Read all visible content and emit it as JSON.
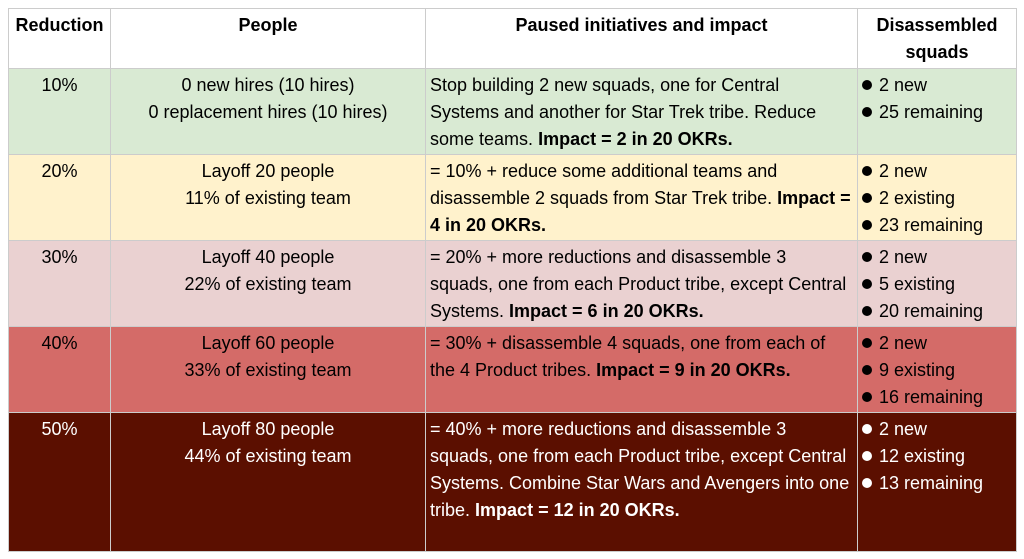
{
  "table": {
    "header": [
      "Reduction",
      "People",
      "Paused initiatives and impact",
      "Disassembled squads"
    ],
    "rows": [
      {
        "reduction": "10%",
        "people": [
          "0 new hires (10 hires)",
          "0 replacement hires (10 hires)"
        ],
        "paused": {
          "text": "Stop building 2 new squads, one for Central Systems and another for Star Trek tribe. Reduce some teams.",
          "impact": "Impact = 2 in 20 OKRs."
        },
        "squads": [
          "2 new",
          "25 remaining"
        ]
      },
      {
        "reduction": "20%",
        "people": [
          "Layoff 20 people",
          "11% of existing team"
        ],
        "paused": {
          "text": "= 10% + reduce some additional teams and disassemble 2 squads from Star Trek tribe.",
          "impact": "Impact = 4 in 20 OKRs."
        },
        "squads": [
          "2 new",
          "2 existing",
          "23 remaining"
        ]
      },
      {
        "reduction": "30%",
        "people": [
          "Layoff 40 people",
          "22% of existing team"
        ],
        "paused": {
          "text": "= 20% + more reductions and disassemble 3 squads, one from each Product tribe, except Central Systems.",
          "impact": "Impact = 6 in 20 OKRs."
        },
        "squads": [
          "2 new",
          "5 existing",
          "20 remaining"
        ]
      },
      {
        "reduction": "40%",
        "people": [
          "Layoff 60 people",
          "33% of existing team"
        ],
        "paused": {
          "text": "= 30% + disassemble 4 squads, one from each of the 4 Product tribes.",
          "impact": "Impact = 9 in 20 OKRs."
        },
        "squads": [
          "2 new",
          "9 existing",
          "16 remaining"
        ]
      },
      {
        "reduction": "50%",
        "people": [
          "Layoff 80 people",
          "44% of existing team"
        ],
        "paused": {
          "text": "= 40% + more reductions and disassemble 3 squads, one from each Product tribe, except Central Systems. Combine Star Wars and Avengers into one tribe.",
          "impact": "Impact = 12 in 20 OKRs."
        },
        "squads": [
          "2 new",
          "12 existing",
          "13 remaining"
        ]
      }
    ]
  }
}
